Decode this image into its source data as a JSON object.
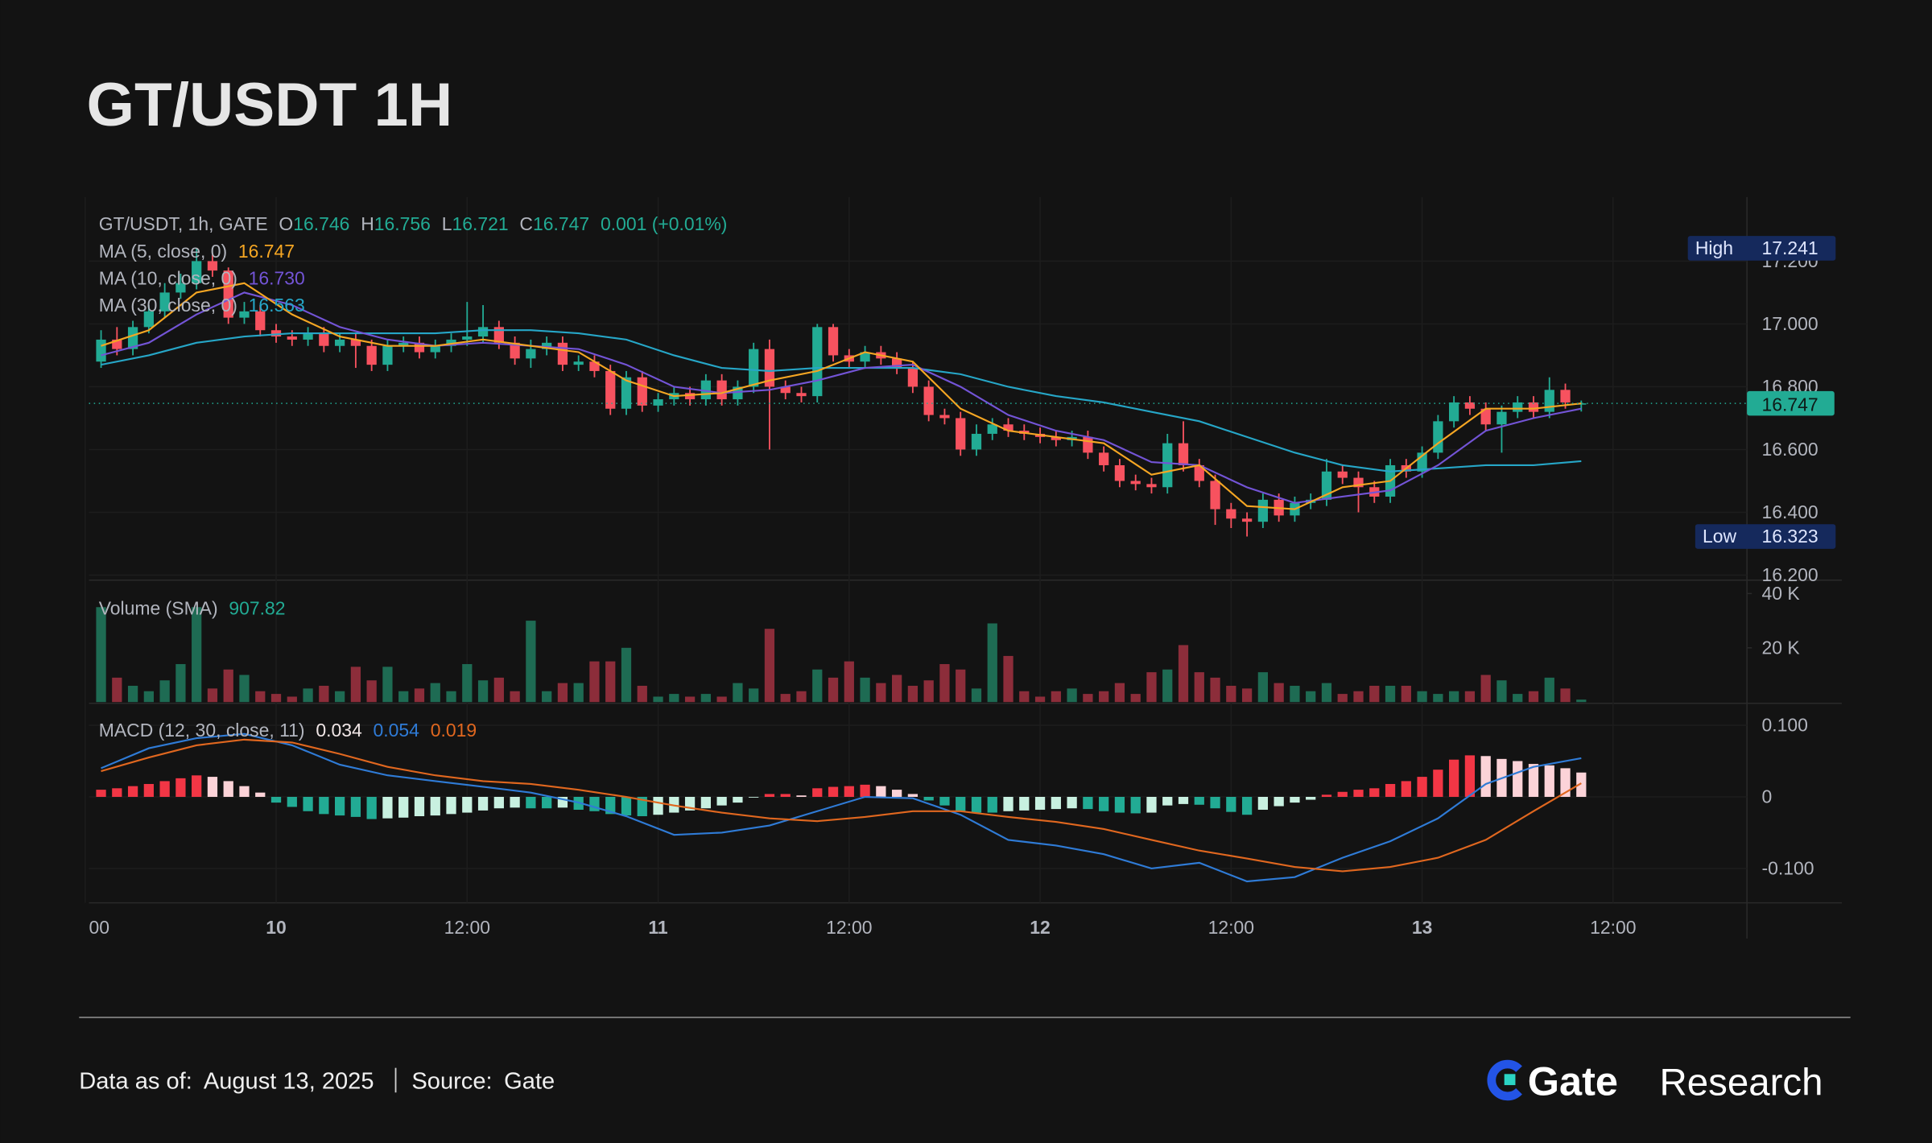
{
  "title": "GT/USDT 1H",
  "footer": {
    "date_label": "Data as of:",
    "date": "August 13, 2025",
    "source_label": "Source:",
    "source": "Gate"
  },
  "logo": {
    "brand": "Gate",
    "suffix": "Research"
  },
  "chart_data": {
    "type": "candlestick",
    "legend_text": "GT/USDT, 1h, GATE",
    "legend_o": "O",
    "legend_h": "H",
    "legend_l": "L",
    "legend_c": "C",
    "change": "0.001 (+0.01%)",
    "high_label": "High",
    "low_label": "Low",
    "up_color": "#22ab94",
    "down_color": "#f7525f",
    "x": [
      -11,
      -10,
      -9,
      -8,
      -7,
      -6,
      -5,
      -4,
      -3,
      -2,
      -1,
      0,
      1,
      2,
      3,
      4,
      5,
      6,
      7,
      8,
      9,
      10,
      11,
      12,
      13,
      14,
      15,
      16,
      17,
      18,
      19,
      20,
      21,
      22,
      23,
      24,
      25,
      26,
      27,
      28,
      29,
      30,
      31,
      32,
      33,
      34,
      35,
      36,
      37,
      38,
      39,
      40,
      41,
      42,
      43,
      44,
      45,
      46,
      47,
      48,
      49,
      50,
      51,
      52,
      53,
      54,
      55,
      56,
      57,
      58,
      59,
      60,
      61,
      62,
      63,
      64,
      65,
      66,
      67,
      68,
      69,
      70,
      71,
      72,
      73,
      74,
      75,
      76,
      77,
      78,
      79,
      80,
      81,
      82
    ],
    "open": [
      16.88,
      16.95,
      16.92,
      16.99,
      17.04,
      17.1,
      17.13,
      17.2,
      17.17,
      17.02,
      17.04,
      16.98,
      16.96,
      16.95,
      16.97,
      16.93,
      16.95,
      16.93,
      16.87,
      16.93,
      16.94,
      16.91,
      16.93,
      16.95,
      16.96,
      16.99,
      16.94,
      16.89,
      16.92,
      16.94,
      16.87,
      16.88,
      16.85,
      16.73,
      16.83,
      16.74,
      16.76,
      16.78,
      16.76,
      16.82,
      16.76,
      16.8,
      16.92,
      16.8,
      16.78,
      16.77,
      16.99,
      16.9,
      16.88,
      16.91,
      16.89,
      16.86,
      16.8,
      16.71,
      16.7,
      16.6,
      16.65,
      16.68,
      16.66,
      16.65,
      16.64,
      16.63,
      16.64,
      16.59,
      16.55,
      16.5,
      16.49,
      16.48,
      16.62,
      16.55,
      16.5,
      16.41,
      16.38,
      16.37,
      16.44,
      16.39,
      16.43,
      16.44,
      16.53,
      16.51,
      16.48,
      16.45,
      16.55,
      16.53,
      16.59,
      16.69,
      16.75,
      16.73,
      16.68,
      16.72,
      16.75,
      16.72,
      16.79,
      16.746
    ],
    "high": [
      16.98,
      16.99,
      17.01,
      17.06,
      17.13,
      17.16,
      17.241,
      17.22,
      17.18,
      17.07,
      17.06,
      17.0,
      16.98,
      16.99,
      16.99,
      16.97,
      16.97,
      16.95,
      16.95,
      16.96,
      16.96,
      16.95,
      16.97,
      17.07,
      17.06,
      17.01,
      16.96,
      16.95,
      16.96,
      16.96,
      16.9,
      16.9,
      16.87,
      16.85,
      16.85,
      16.78,
      16.8,
      16.8,
      16.84,
      16.84,
      16.82,
      16.94,
      16.95,
      16.82,
      16.8,
      17.0,
      17.0,
      16.92,
      16.93,
      16.93,
      16.91,
      16.88,
      16.82,
      16.73,
      16.72,
      16.68,
      16.7,
      16.7,
      16.68,
      16.67,
      16.66,
      16.66,
      16.66,
      16.61,
      16.57,
      16.52,
      16.51,
      16.65,
      16.69,
      16.57,
      16.52,
      16.43,
      16.4,
      16.46,
      16.46,
      16.45,
      16.46,
      16.57,
      16.55,
      16.53,
      16.5,
      16.57,
      16.57,
      16.61,
      16.71,
      16.77,
      16.77,
      16.75,
      16.74,
      16.77,
      16.77,
      16.83,
      16.81,
      16.756
    ],
    "low": [
      16.86,
      16.9,
      16.9,
      16.97,
      17.02,
      17.08,
      17.11,
      17.15,
      17.0,
      17.0,
      16.96,
      16.94,
      16.93,
      16.93,
      16.91,
      16.91,
      16.86,
      16.85,
      16.85,
      16.91,
      16.89,
      16.89,
      16.91,
      16.93,
      16.94,
      16.92,
      16.87,
      16.86,
      16.9,
      16.85,
      16.85,
      16.83,
      16.71,
      16.71,
      16.72,
      16.72,
      16.74,
      16.74,
      16.74,
      16.74,
      16.74,
      16.78,
      16.6,
      16.76,
      16.75,
      16.75,
      16.88,
      16.86,
      16.86,
      16.87,
      16.84,
      16.78,
      16.69,
      16.68,
      16.58,
      16.58,
      16.63,
      16.64,
      16.63,
      16.62,
      16.61,
      16.61,
      16.57,
      16.53,
      16.48,
      16.47,
      16.46,
      16.46,
      16.53,
      16.48,
      16.36,
      16.35,
      16.323,
      16.35,
      16.37,
      16.37,
      16.41,
      16.42,
      16.49,
      16.4,
      16.43,
      16.43,
      16.51,
      16.51,
      16.57,
      16.67,
      16.71,
      16.66,
      16.59,
      16.7,
      16.7,
      16.7,
      16.73,
      16.721
    ],
    "close": [
      16.95,
      16.92,
      16.99,
      17.04,
      17.1,
      17.13,
      17.2,
      17.17,
      17.02,
      17.04,
      16.98,
      16.96,
      16.95,
      16.97,
      16.93,
      16.95,
      16.93,
      16.87,
      16.93,
      16.94,
      16.91,
      16.93,
      16.95,
      16.96,
      16.99,
      16.94,
      16.89,
      16.92,
      16.94,
      16.87,
      16.88,
      16.85,
      16.73,
      16.83,
      16.74,
      16.76,
      16.78,
      16.76,
      16.82,
      16.76,
      16.8,
      16.92,
      16.8,
      16.78,
      16.77,
      16.99,
      16.9,
      16.88,
      16.91,
      16.89,
      16.86,
      16.8,
      16.71,
      16.7,
      16.6,
      16.65,
      16.68,
      16.66,
      16.65,
      16.64,
      16.63,
      16.64,
      16.59,
      16.55,
      16.5,
      16.49,
      16.48,
      16.62,
      16.55,
      16.5,
      16.41,
      16.38,
      16.37,
      16.44,
      16.39,
      16.43,
      16.44,
      16.53,
      16.51,
      16.48,
      16.45,
      16.55,
      16.53,
      16.59,
      16.69,
      16.75,
      16.73,
      16.68,
      16.72,
      16.75,
      16.72,
      16.79,
      16.75,
      16.747
    ],
    "xlim": [
      -11.76,
      92.41
    ],
    "xticks": [
      {
        "value": -12,
        "label": "00"
      },
      {
        "value": 0,
        "label": "10"
      },
      {
        "value": 12,
        "label": "12:00"
      },
      {
        "value": 24,
        "label": "11"
      },
      {
        "value": 36,
        "label": "12:00"
      },
      {
        "value": 48,
        "label": "12"
      },
      {
        "value": 60,
        "label": "12:00"
      },
      {
        "value": 72,
        "label": "13"
      },
      {
        "value": 84,
        "label": "12:00"
      }
    ],
    "ylim": [
      16.188,
      17.404
    ],
    "yticks": [
      {
        "value": 16.2,
        "label": "16.200"
      },
      {
        "value": 16.4,
        "label": "16.400"
      },
      {
        "value": 16.6,
        "label": "16.600"
      },
      {
        "value": 16.8,
        "label": "16.800"
      },
      {
        "value": 17,
        "label": "17.000"
      },
      {
        "value": 17.2,
        "label": "17.200"
      }
    ],
    "ma": {
      "x": [
        -11,
        -8,
        -5,
        -2,
        1,
        4,
        7,
        10,
        13,
        16,
        19,
        22,
        25,
        28,
        31,
        34,
        37,
        40,
        43,
        46,
        49,
        52,
        55,
        58,
        61,
        64,
        67,
        70,
        73,
        76,
        79,
        82
      ],
      "series": [
        {
          "name": "MA (5, close, 0)",
          "color": "#f5a623",
          "value_label": "16.747",
          "values": [
            16.93,
            16.98,
            17.1,
            17.13,
            17.03,
            16.96,
            16.93,
            16.93,
            16.95,
            16.93,
            16.91,
            16.82,
            16.77,
            16.78,
            16.82,
            16.85,
            16.91,
            16.88,
            16.73,
            16.66,
            16.64,
            16.62,
            16.52,
            16.55,
            16.42,
            16.41,
            16.48,
            16.5,
            16.62,
            16.73,
            16.73,
            16.747
          ]
        },
        {
          "name": "MA (10, close, 0)",
          "color": "#7354d6",
          "value_label": "16.730",
          "values": [
            16.9,
            16.94,
            17.03,
            17.1,
            17.06,
            16.99,
            16.95,
            16.93,
            16.94,
            16.93,
            16.92,
            16.87,
            16.8,
            16.78,
            16.79,
            16.82,
            16.86,
            16.87,
            16.8,
            16.71,
            16.66,
            16.63,
            16.56,
            16.55,
            16.48,
            16.43,
            16.45,
            16.47,
            16.55,
            16.66,
            16.7,
            16.73
          ]
        },
        {
          "name": "MA (30, close, 0)",
          "color": "#26a6c7",
          "value_label": "16.563",
          "values": [
            16.87,
            16.9,
            16.94,
            16.96,
            16.97,
            16.97,
            16.97,
            16.97,
            16.98,
            16.98,
            16.97,
            16.95,
            16.9,
            16.86,
            16.85,
            16.86,
            16.86,
            16.86,
            16.84,
            16.8,
            16.77,
            16.75,
            16.72,
            16.69,
            16.64,
            16.59,
            16.55,
            16.53,
            16.54,
            16.55,
            16.55,
            16.563
          ]
        }
      ]
    },
    "volume": {
      "type": "bar",
      "name": "Volume (SMA)",
      "up_color": "#1e6b53",
      "down_color": "#8c2d3a",
      "values": [
        35000,
        9000,
        6000,
        4000,
        8000,
        14000,
        35000,
        5000,
        12000,
        10000,
        4000,
        3000,
        2000,
        5000,
        6000,
        4000,
        13000,
        8000,
        13000,
        4000,
        5000,
        7000,
        4000,
        14000,
        8000,
        9000,
        4000,
        30000,
        4000,
        7000,
        7000,
        15000,
        15000,
        20000,
        6000,
        2000,
        3000,
        2000,
        3000,
        2000,
        7000,
        5000,
        27000,
        3000,
        4000,
        12000,
        9000,
        15000,
        9000,
        7000,
        10000,
        6000,
        8000,
        14000,
        12000,
        5000,
        29000,
        17000,
        4000,
        2000,
        4000,
        5000,
        3000,
        4000,
        7000,
        3000,
        11000,
        12000,
        21000,
        11000,
        9000,
        6000,
        5000,
        11000,
        7000,
        6000,
        4000,
        7000,
        3000,
        4000,
        6000,
        6000,
        6000,
        4000,
        3000,
        4000,
        4000,
        10000,
        8000,
        3000,
        4000,
        9000,
        5000,
        907.82
      ],
      "ylim": [
        0,
        44500
      ],
      "yticks": [
        {
          "value": 20000,
          "label": "20 K"
        },
        {
          "value": 40000,
          "label": "40 K"
        }
      ]
    },
    "macd": {
      "type": "macd",
      "name": "MACD (12, 30, close, 11)",
      "hist_value_color": "#f0e6e6",
      "histogram": [
        0.01,
        0.012,
        0.015,
        0.018,
        0.022,
        0.026,
        0.03,
        0.028,
        0.022,
        0.015,
        0.006,
        -0.008,
        -0.014,
        -0.02,
        -0.024,
        -0.026,
        -0.028,
        -0.031,
        -0.03,
        -0.029,
        -0.027,
        -0.026,
        -0.024,
        -0.022,
        -0.019,
        -0.016,
        -0.015,
        -0.016,
        -0.016,
        -0.015,
        -0.018,
        -0.02,
        -0.024,
        -0.026,
        -0.027,
        -0.025,
        -0.022,
        -0.019,
        -0.016,
        -0.012,
        -0.008,
        -0.001,
        0.004,
        0.004,
        0.002,
        0.012,
        0.014,
        0.015,
        0.017,
        0.015,
        0.01,
        0.004,
        -0.005,
        -0.012,
        -0.02,
        -0.022,
        -0.022,
        -0.02,
        -0.019,
        -0.018,
        -0.017,
        -0.016,
        -0.017,
        -0.02,
        -0.022,
        -0.023,
        -0.022,
        -0.012,
        -0.01,
        -0.011,
        -0.016,
        -0.021,
        -0.025,
        -0.018,
        -0.013,
        -0.008,
        -0.004,
        0.003,
        0.007,
        0.01,
        0.012,
        0.018,
        0.022,
        0.028,
        0.038,
        0.052,
        0.058,
        0.057,
        0.053,
        0.05,
        0.046,
        0.044,
        0.04,
        0.034
      ],
      "x": [
        -11,
        -8,
        -5,
        -2,
        1,
        4,
        7,
        10,
        13,
        16,
        19,
        22,
        25,
        28,
        31,
        34,
        37,
        40,
        43,
        46,
        49,
        52,
        55,
        58,
        61,
        64,
        67,
        70,
        73,
        76,
        79,
        82
      ],
      "series": [
        {
          "color": "#2f7bd6",
          "values": [
            0.04,
            0.068,
            0.082,
            0.088,
            0.072,
            0.045,
            0.03,
            0.022,
            0.014,
            0.006,
            -0.008,
            -0.027,
            -0.053,
            -0.05,
            -0.04,
            -0.02,
            0.0,
            -0.002,
            -0.025,
            -0.06,
            -0.068,
            -0.08,
            -0.1,
            -0.092,
            -0.118,
            -0.112,
            -0.085,
            -0.062,
            -0.03,
            0.018,
            0.042,
            0.054
          ]
        },
        {
          "color": "#e0671f",
          "values": [
            0.036,
            0.055,
            0.072,
            0.08,
            0.076,
            0.06,
            0.042,
            0.03,
            0.022,
            0.018,
            0.01,
            0.0,
            -0.012,
            -0.022,
            -0.03,
            -0.034,
            -0.028,
            -0.02,
            -0.02,
            -0.028,
            -0.035,
            -0.045,
            -0.06,
            -0.075,
            -0.086,
            -0.098,
            -0.104,
            -0.098,
            -0.085,
            -0.06,
            -0.02,
            0.019
          ]
        }
      ],
      "ylim": [
        -0.148,
        0.129
      ],
      "yticks": [
        {
          "value": -0.1,
          "label": "-0.100"
        },
        0,
        {
          "value": 0.1,
          "label": "0.100"
        }
      ]
    }
  }
}
